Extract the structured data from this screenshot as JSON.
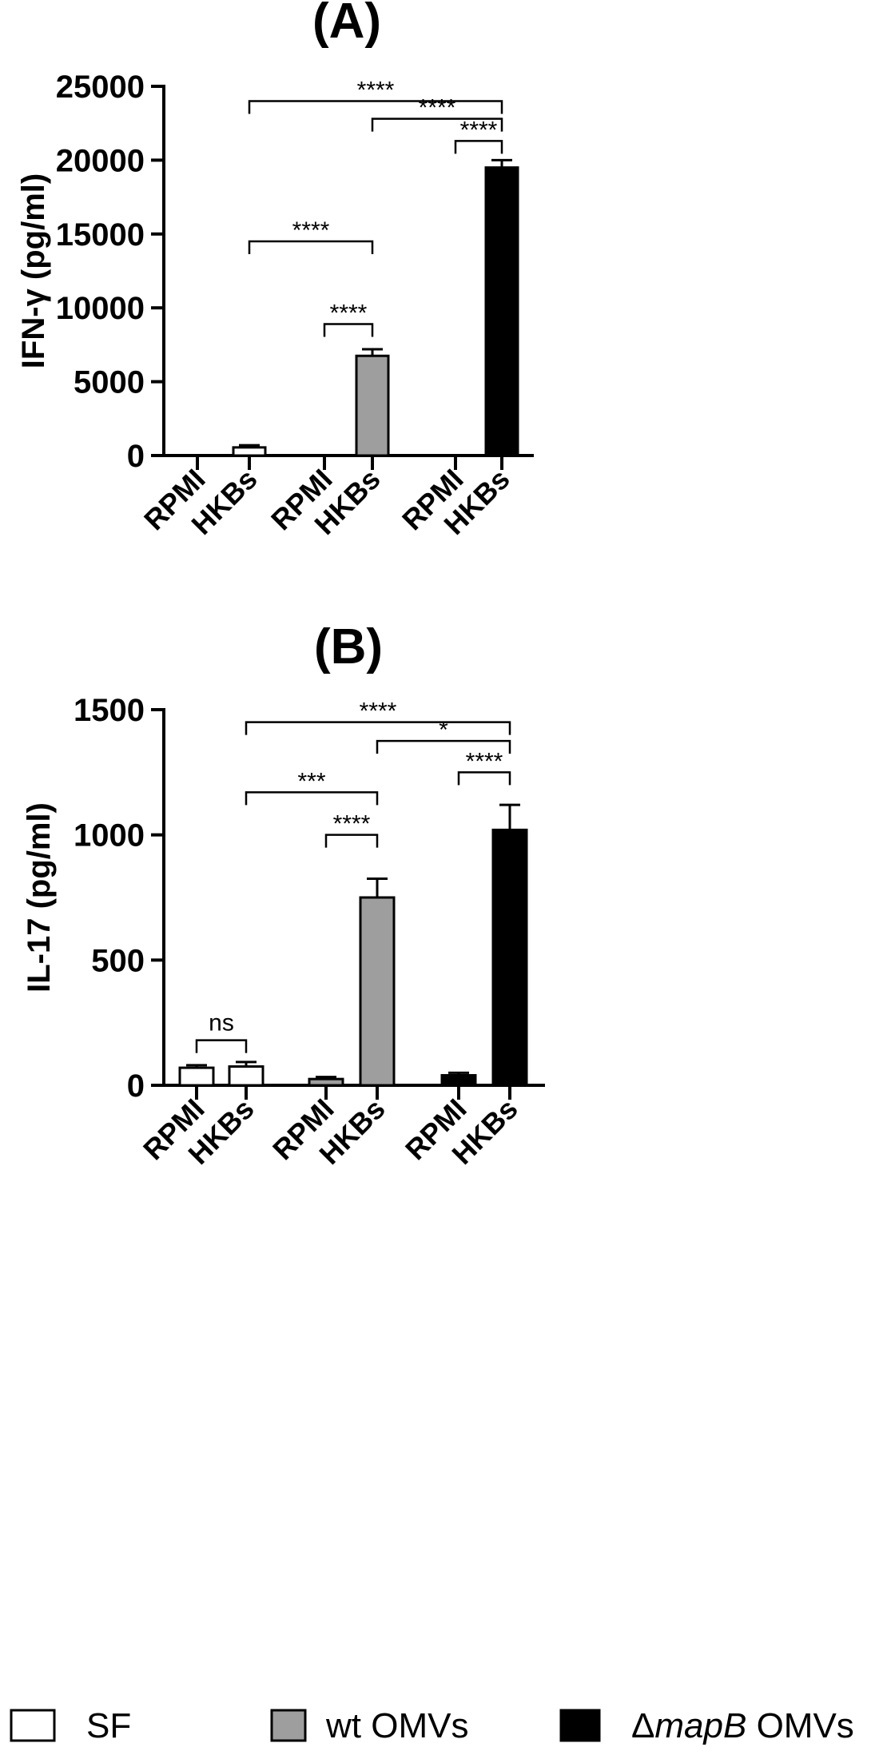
{
  "chart_data": [
    {
      "type": "bar",
      "title": "(A)",
      "ylabel": "IFN-γ (pg/ml)",
      "ylim": [
        0,
        25000
      ],
      "yticks": [
        0,
        5000,
        10000,
        15000,
        20000,
        25000
      ],
      "categories": [
        "RPMI",
        "HKBs",
        "RPMI",
        "HKBs",
        "RPMI",
        "HKBs"
      ],
      "groups": [
        "SF",
        "SF",
        "wt OMVs",
        "wt OMVs",
        "ΔmapB OMVs",
        "ΔmapB OMVs"
      ],
      "values": [
        0,
        550,
        0,
        6750,
        0,
        19500
      ],
      "errors": [
        0,
        150,
        0,
        450,
        0,
        500
      ],
      "comparisons": [
        {
          "from": 1,
          "to": 5,
          "label": "****",
          "y": 24000
        },
        {
          "from": 3,
          "to": 5,
          "label": "****",
          "y": 22800
        },
        {
          "from": 4,
          "to": 5,
          "label": "****",
          "y": 21300
        },
        {
          "from": 1,
          "to": 3,
          "label": "****",
          "y": 14500
        },
        {
          "from": 2,
          "to": 3,
          "label": "****",
          "y": 8900
        }
      ]
    },
    {
      "type": "bar",
      "title": "(B)",
      "ylabel": "IL-17 (pg/ml)",
      "ylim": [
        0,
        1500
      ],
      "yticks": [
        0,
        500,
        1000,
        1500
      ],
      "categories": [
        "RPMI",
        "HKBs",
        "RPMI",
        "HKBs",
        "RPMI",
        "HKBs"
      ],
      "groups": [
        "SF",
        "SF",
        "wt OMVs",
        "wt OMVs",
        "ΔmapB OMVs",
        "ΔmapB OMVs"
      ],
      "values": [
        70,
        75,
        25,
        750,
        40,
        1020
      ],
      "errors": [
        10,
        18,
        8,
        75,
        10,
        100
      ],
      "comparisons": [
        {
          "from": 1,
          "to": 5,
          "label": "****",
          "y": 1450
        },
        {
          "from": 3,
          "to": 5,
          "label": "*",
          "y": 1375
        },
        {
          "from": 4,
          "to": 5,
          "label": "****",
          "y": 1250
        },
        {
          "from": 1,
          "to": 3,
          "label": "***",
          "y": 1170
        },
        {
          "from": 2,
          "to": 3,
          "label": "****",
          "y": 1000
        },
        {
          "from": 0,
          "to": 1,
          "label": "ns",
          "y": 180
        }
      ]
    }
  ],
  "legend": [
    {
      "label": "SF",
      "color": "#ffffff"
    },
    {
      "label": "wt OMVs",
      "color": "#9e9e9e"
    },
    {
      "label_prefix": "Δ",
      "label_italic": "mapB",
      "label_suffix": " OMVs",
      "color": "#000000"
    }
  ]
}
